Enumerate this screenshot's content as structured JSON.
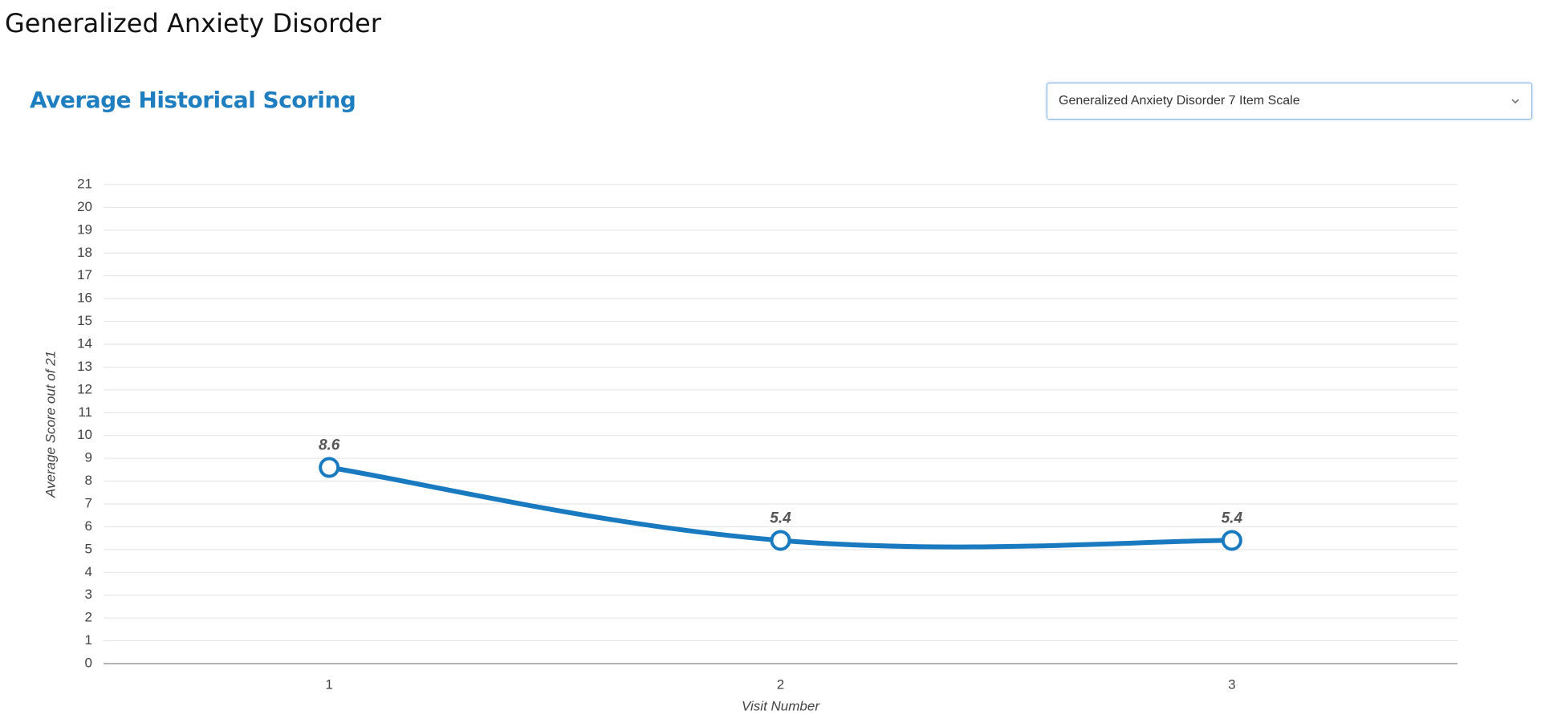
{
  "page_title": "Generalized Anxiety Disorder",
  "dropdown": {
    "selected": "Generalized Anxiety Disorder 7 Item Scale"
  },
  "chart_data": {
    "type": "line",
    "title": "Average Historical Scoring",
    "x_label": "Visit Number",
    "y_label": "Average Score out of 21",
    "categories": [
      "1",
      "2",
      "3"
    ],
    "series": [
      {
        "name": "Average Score",
        "color": "#1a7abf",
        "values": [
          8.6,
          5.4,
          5.4
        ]
      }
    ],
    "ylim": [
      0,
      21
    ],
    "yticks": [
      0,
      1,
      2,
      3,
      4,
      5,
      6,
      7,
      8,
      9,
      10,
      11,
      12,
      13,
      14,
      15,
      16,
      17,
      18,
      19,
      20,
      21
    ],
    "grid": true,
    "smooth": true,
    "show_value_labels": true
  }
}
